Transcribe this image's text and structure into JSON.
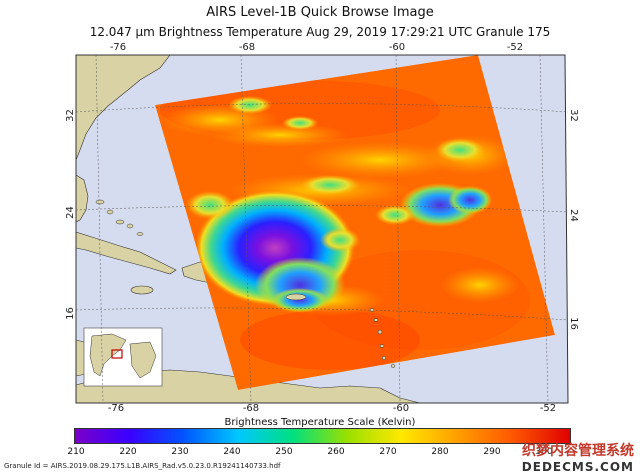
{
  "header": {
    "title": "AIRS Level-1B Quick Browse Image",
    "subtitle": "12.047 µm Brightness Temperature   Aug 29, 2019 17:29:21 UTC   Granule 175"
  },
  "map": {
    "lon_labels_top": [
      "-76",
      "-68",
      "-60",
      "-52"
    ],
    "lon_labels_bottom": [
      "-76",
      "-68",
      "-60",
      "-52"
    ],
    "lat_labels_left": [
      "32",
      "24",
      "16"
    ],
    "lat_labels_right": [
      "32",
      "24",
      "16"
    ]
  },
  "colorbar": {
    "title": "Brightness Temperature Scale (Kelvin)",
    "ticks": [
      "210",
      "220",
      "230",
      "240",
      "250",
      "260",
      "270",
      "280",
      "290",
      "300"
    ],
    "colors": [
      "#7a00c8",
      "#3a00ff",
      "#0055ff",
      "#00c8ff",
      "#00e080",
      "#9ae000",
      "#ffe800",
      "#ffa000",
      "#ff5a00",
      "#e00000"
    ]
  },
  "footer": {
    "granule_id": "Granule Id = AIRS.2019.08.29.175.L1B.AIRS_Rad.v5.0.23.0.R19241140733.hdf"
  },
  "watermark": {
    "line1": "织梦内容管理系统",
    "line2": "DEDECMS.COM"
  }
}
